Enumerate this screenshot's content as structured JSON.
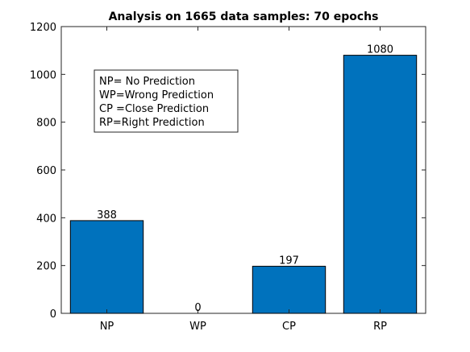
{
  "chart_data": {
    "type": "bar",
    "title": "Analysis on 1665 data samples: 70 epochs",
    "xlabel": "",
    "ylabel": "",
    "categories": [
      "NP",
      "WP",
      "CP",
      "RP"
    ],
    "values": [
      388,
      0,
      197,
      1080
    ],
    "data_labels": [
      "388",
      "0",
      "197",
      "1080"
    ],
    "ylim": [
      0,
      1200
    ],
    "yticks": [
      0,
      200,
      400,
      600,
      800,
      1000,
      1200
    ],
    "bar_color": "#0072BD",
    "grid": false,
    "legend": {
      "placement": "top-left",
      "entries": [
        "NP= No Prediction",
        "WP=Wrong Prediction",
        "CP =Close Prediction",
        "RP=Right Prediction"
      ]
    }
  }
}
